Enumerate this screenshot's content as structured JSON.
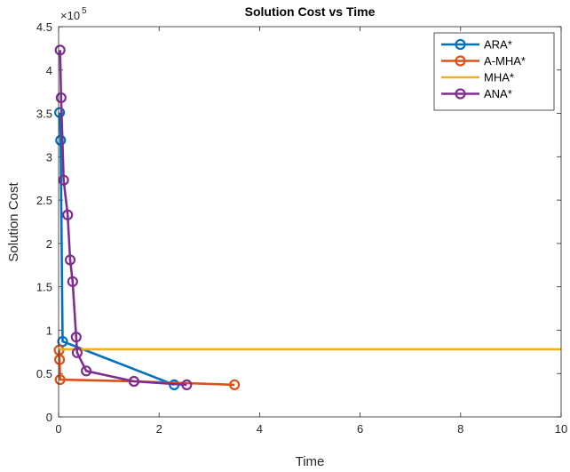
{
  "chart_data": {
    "type": "line",
    "title": "Solution Cost vs Time",
    "xlabel": "Time",
    "ylabel": "Solution Cost",
    "xlim": [
      0,
      10
    ],
    "ylim": [
      0,
      4.5
    ],
    "y_multiplier_base": "×10",
    "y_multiplier_exponent": "5",
    "x_ticks": [
      "0",
      "2",
      "4",
      "6",
      "8",
      "10"
    ],
    "y_ticks": [
      "0",
      "0.5",
      "1",
      "1.5",
      "2",
      "2.5",
      "3",
      "3.5",
      "4",
      "4.5"
    ],
    "legend_position": "top-right",
    "grid": false,
    "series": [
      {
        "name": "ARA*",
        "color": "#0072BD",
        "marker": "circle",
        "points": [
          [
            0.02,
            3.51
          ],
          [
            0.04,
            3.19
          ],
          [
            0.08,
            0.87
          ],
          [
            2.3,
            0.37
          ]
        ]
      },
      {
        "name": "A-MHA*",
        "color": "#D95319",
        "marker": "circle",
        "points": [
          [
            0.01,
            0.77
          ],
          [
            0.02,
            0.66
          ],
          [
            0.03,
            0.43
          ],
          [
            1.5,
            0.41
          ],
          [
            3.5,
            0.37
          ]
        ]
      },
      {
        "name": "MHA*",
        "color": "#EDB120",
        "marker": "none",
        "points": [
          [
            0.0,
            0.78
          ],
          [
            10.0,
            0.78
          ]
        ]
      },
      {
        "name": "ANA*",
        "color": "#7E2F8E",
        "marker": "circle",
        "points": [
          [
            0.03,
            4.23
          ],
          [
            0.05,
            3.68
          ],
          [
            0.1,
            2.73
          ],
          [
            0.18,
            2.33
          ],
          [
            0.23,
            1.81
          ],
          [
            0.28,
            1.56
          ],
          [
            0.35,
            0.92
          ],
          [
            0.37,
            0.74
          ],
          [
            0.55,
            0.53
          ],
          [
            1.5,
            0.41
          ],
          [
            2.55,
            0.37
          ]
        ]
      }
    ]
  }
}
